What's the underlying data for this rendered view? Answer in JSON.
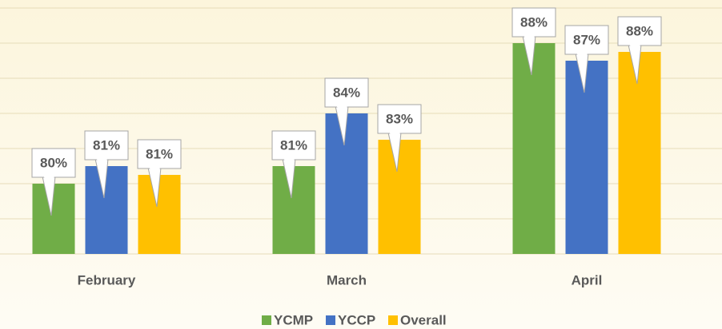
{
  "chart_data": {
    "type": "bar",
    "categories": [
      "February",
      "March",
      "April"
    ],
    "series": [
      {
        "name": "YCMP",
        "color": "#70ad47",
        "values": [
          80,
          81,
          88
        ],
        "value_labels": [
          "80%",
          "81%",
          "88%"
        ]
      },
      {
        "name": "YCCP",
        "color": "#4472c4",
        "values": [
          81,
          84,
          87
        ],
        "value_labels": [
          "81%",
          "84%",
          "87%"
        ]
      },
      {
        "name": "Overall",
        "color": "#ffc000",
        "values": [
          80.5,
          82.5,
          87.5
        ],
        "value_labels": [
          "81%",
          "83%",
          "88%"
        ]
      }
    ],
    "ylim": [
      76,
      90
    ],
    "yticks": [
      76,
      78,
      80,
      82,
      84,
      86,
      88,
      90
    ],
    "grid": true,
    "legend": "bottom"
  }
}
